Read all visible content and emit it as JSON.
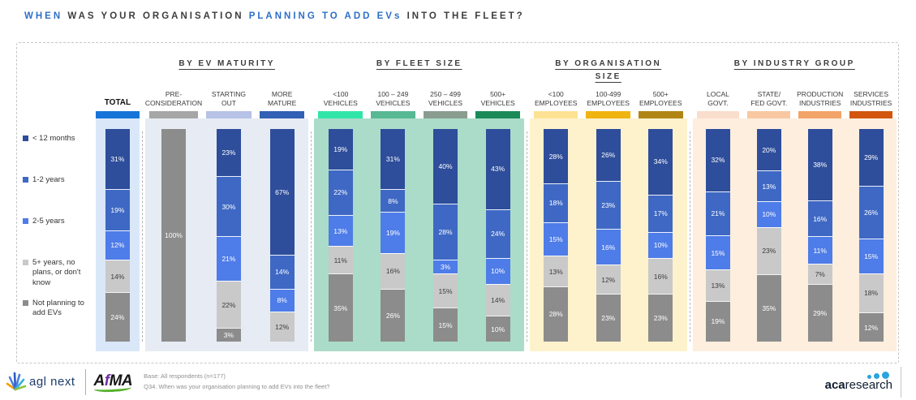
{
  "title": {
    "parts": [
      {
        "text": "WHEN ",
        "accent": true
      },
      {
        "text": "WAS YOUR ORGANISATION ",
        "accent": false
      },
      {
        "text": "PLANNING TO ADD EVs ",
        "accent": true
      },
      {
        "text": "INTO THE FLEET?",
        "accent": false
      }
    ]
  },
  "legend": {
    "items": [
      {
        "label": "< 12 months"
      },
      {
        "label": "1-2 years"
      },
      {
        "label": "2-5 years"
      },
      {
        "label": "5+ years, no\nplans, or don't\nknow"
      },
      {
        "label": "Not planning to\nadd EVs"
      }
    ]
  },
  "chart_data": {
    "type": "bar",
    "stacked": true,
    "orientation": "vertical",
    "value_unit": "%",
    "legend_position": "left",
    "series": [
      {
        "name": "< 12 months",
        "color": "#2e4d9b",
        "label_color": "#ffffff"
      },
      {
        "name": "1-2 years",
        "color": "#3e68c4",
        "label_color": "#ffffff"
      },
      {
        "name": "2-5 years",
        "color": "#4e7ce8",
        "label_color": "#ffffff"
      },
      {
        "name": "5+ years, no plans, or don't know",
        "color": "#c9c9c9",
        "label_color": "#3c3c3c"
      },
      {
        "name": "Not planning to add EVs",
        "color": "#8c8c8c",
        "label_color": "#ffffff"
      }
    ],
    "groups": [
      {
        "title": "",
        "panel_color": "#d9e7f8",
        "flex": 54,
        "columns": [
          {
            "label": "TOTAL",
            "bold": true,
            "chip_color": "#1674d9",
            "values": [
              31,
              19,
              12,
              14,
              24
            ]
          }
        ]
      },
      {
        "title": "BY EV MATURITY",
        "panel_color": "#e7ebf3",
        "flex": 202,
        "columns": [
          {
            "label": "PRE-\nCONSIDERATION",
            "chip_color": "#a6a6a6",
            "values": [
              0,
              0,
              0,
              0,
              100
            ]
          },
          {
            "label": "STARTING\nOUT",
            "chip_color": "#b6c2e6",
            "values": [
              23,
              30,
              21,
              22,
              3
            ]
          },
          {
            "label": "MORE\nMATURE",
            "chip_color": "#3160b4",
            "values": [
              67,
              14,
              8,
              12,
              0
            ]
          }
        ]
      },
      {
        "title": "BY FLEET SIZE",
        "panel_color": "#abdcc9",
        "flex": 259,
        "columns": [
          {
            "label": "<100\nVEHICLES",
            "chip_color": "#30e5a8",
            "values": [
              19,
              22,
              13,
              11,
              35
            ]
          },
          {
            "label": "100 – 249\nVEHICLES",
            "chip_color": "#57b894",
            "values": [
              31,
              8,
              19,
              16,
              26
            ]
          },
          {
            "label": "250 – 499\nVEHICLES",
            "chip_color": "#8a9c90",
            "values": [
              40,
              28,
              3,
              15,
              15
            ]
          },
          {
            "label": "500+\nVEHICLES",
            "chip_color": "#1a8a58",
            "values": [
              43,
              24,
              10,
              14,
              10
            ]
          }
        ]
      },
      {
        "title": "BY ORGANISATION\nSIZE",
        "panel_color": "#fdf2cc",
        "flex": 194,
        "columns": [
          {
            "label": "<100\nEMPLOYEES",
            "chip_color": "#fee294",
            "values": [
              28,
              18,
              15,
              13,
              28
            ]
          },
          {
            "label": "100-499\nEMPLOYEES",
            "chip_color": "#f0b410",
            "values": [
              26,
              23,
              16,
              12,
              23
            ]
          },
          {
            "label": "500+\nEMPLOYEES",
            "chip_color": "#b08514",
            "values": [
              34,
              17,
              10,
              16,
              23
            ]
          }
        ]
      },
      {
        "title": "BY INDUSTRY GROUP",
        "panel_color": "#fdeede",
        "flex": 252,
        "columns": [
          {
            "label": "LOCAL\nGOVT.",
            "chip_color": "#fadecd",
            "values": [
              32,
              21,
              15,
              13,
              19
            ]
          },
          {
            "label": "STATE/\nFED GOVT.",
            "chip_color": "#f8c8a2",
            "values": [
              20,
              13,
              10,
              23,
              35
            ]
          },
          {
            "label": "PRODUCTION\nINDUSTRIES",
            "chip_color": "#f2a468",
            "values": [
              38,
              16,
              11,
              7,
              29
            ]
          },
          {
            "label": "SERVICES\nINDUSTRIES",
            "chip_color": "#d2560e",
            "values": [
              29,
              26,
              15,
              18,
              12
            ]
          }
        ]
      }
    ]
  },
  "footer": {
    "base_line1": "Base: All respondents (n=177)",
    "base_line2": "Q34. When was your organisation planning to add EVs into the fleet?",
    "logo_agl": "agl next",
    "logo_afma_a": "A",
    "logo_afma_f": "f",
    "logo_afma_ma": "MA",
    "logo_acar_bold": "aca",
    "logo_acar_rest": "research"
  }
}
